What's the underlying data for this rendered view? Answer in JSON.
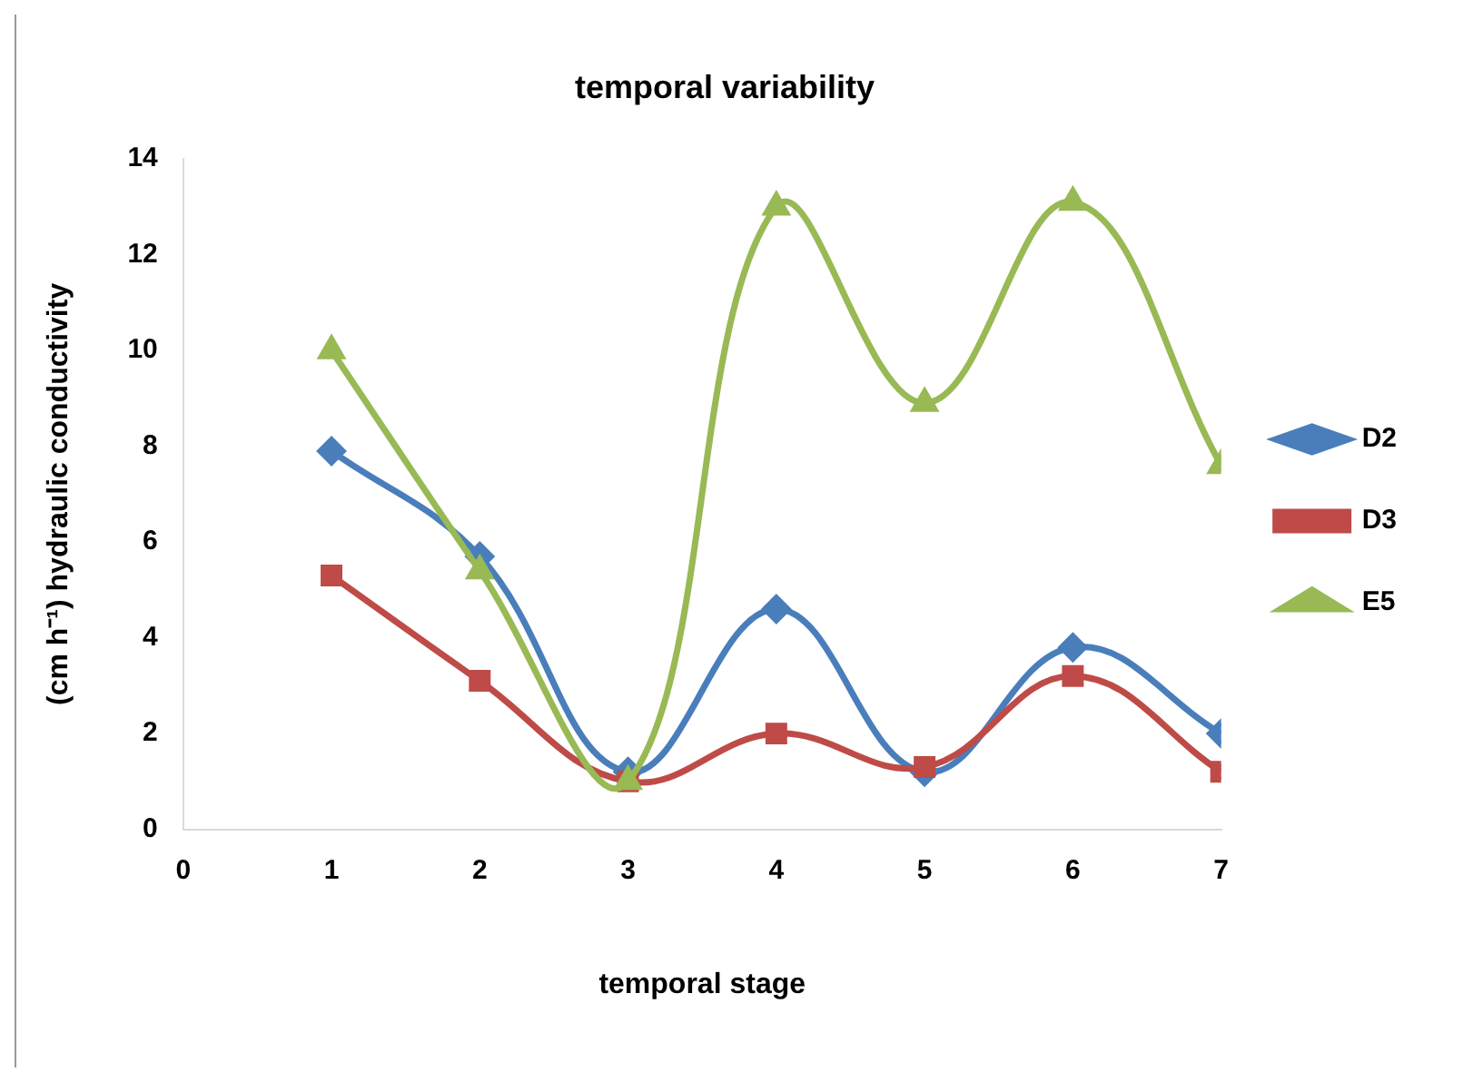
{
  "chart_data": {
    "type": "line",
    "title": "temporal variability",
    "xlabel": "temporal stage",
    "ylabel": "(cm h⁻¹) hydraulic conductivity",
    "x": [
      1,
      2,
      3,
      4,
      5,
      6,
      7
    ],
    "series": [
      {
        "name": "D2",
        "color": "#4a7ebb",
        "marker": "diamond",
        "values": [
          7.9,
          5.7,
          1.2,
          4.6,
          1.2,
          3.8,
          2.0
        ]
      },
      {
        "name": "D3",
        "color": "#be4b48",
        "marker": "square",
        "values": [
          5.3,
          3.1,
          1.0,
          2.0,
          1.3,
          3.2,
          1.2
        ]
      },
      {
        "name": "E5",
        "color": "#98b954",
        "marker": "triangle",
        "values": [
          10.0,
          5.4,
          1.0,
          13.0,
          8.9,
          13.1,
          7.6
        ]
      }
    ],
    "xlim": [
      0,
      7
    ],
    "xticks": [
      0,
      1,
      2,
      3,
      4,
      5,
      6,
      7
    ],
    "ylim": [
      0,
      14
    ],
    "yticks": [
      0,
      2,
      4,
      6,
      8,
      10,
      12,
      14
    ],
    "grid": false,
    "legend": "right",
    "line_style": "solid"
  }
}
